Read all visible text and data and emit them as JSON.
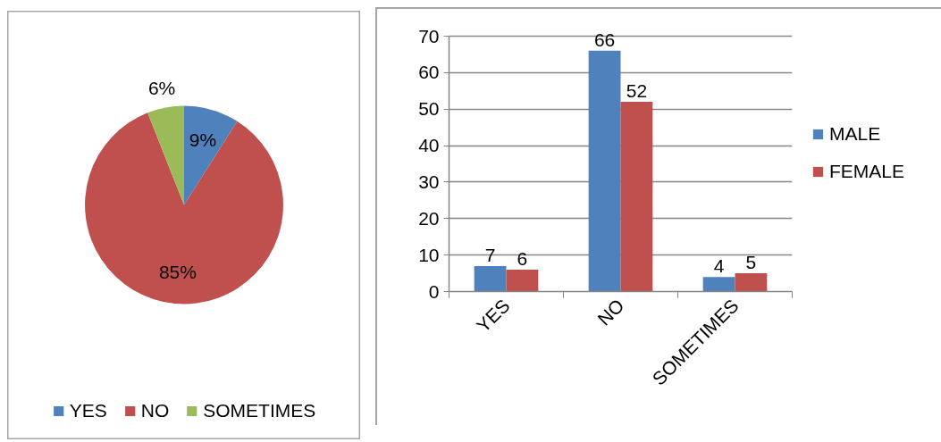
{
  "chart_data": [
    {
      "type": "pie",
      "categories": [
        "YES",
        "NO",
        "SOMETIMES"
      ],
      "values": [
        9,
        85,
        6
      ],
      "colors": [
        "#4f81bd",
        "#c0504d",
        "#9bbb59"
      ],
      "value_labels": [
        "9%",
        "85%",
        "6%"
      ],
      "legend": "bottom"
    },
    {
      "type": "bar",
      "categories": [
        "YES",
        "NO",
        "SOMETIMES"
      ],
      "series": [
        {
          "name": "MALE",
          "color": "#4f81bd",
          "values": [
            7,
            66,
            4
          ]
        },
        {
          "name": "FEMALE",
          "color": "#c0504d",
          "values": [
            6,
            52,
            5
          ]
        }
      ],
      "ylim": [
        0,
        70
      ],
      "yticks": [
        0,
        10,
        20,
        30,
        40,
        50,
        60,
        70
      ],
      "grid": "y",
      "legend": "right",
      "data_labels": true
    }
  ]
}
